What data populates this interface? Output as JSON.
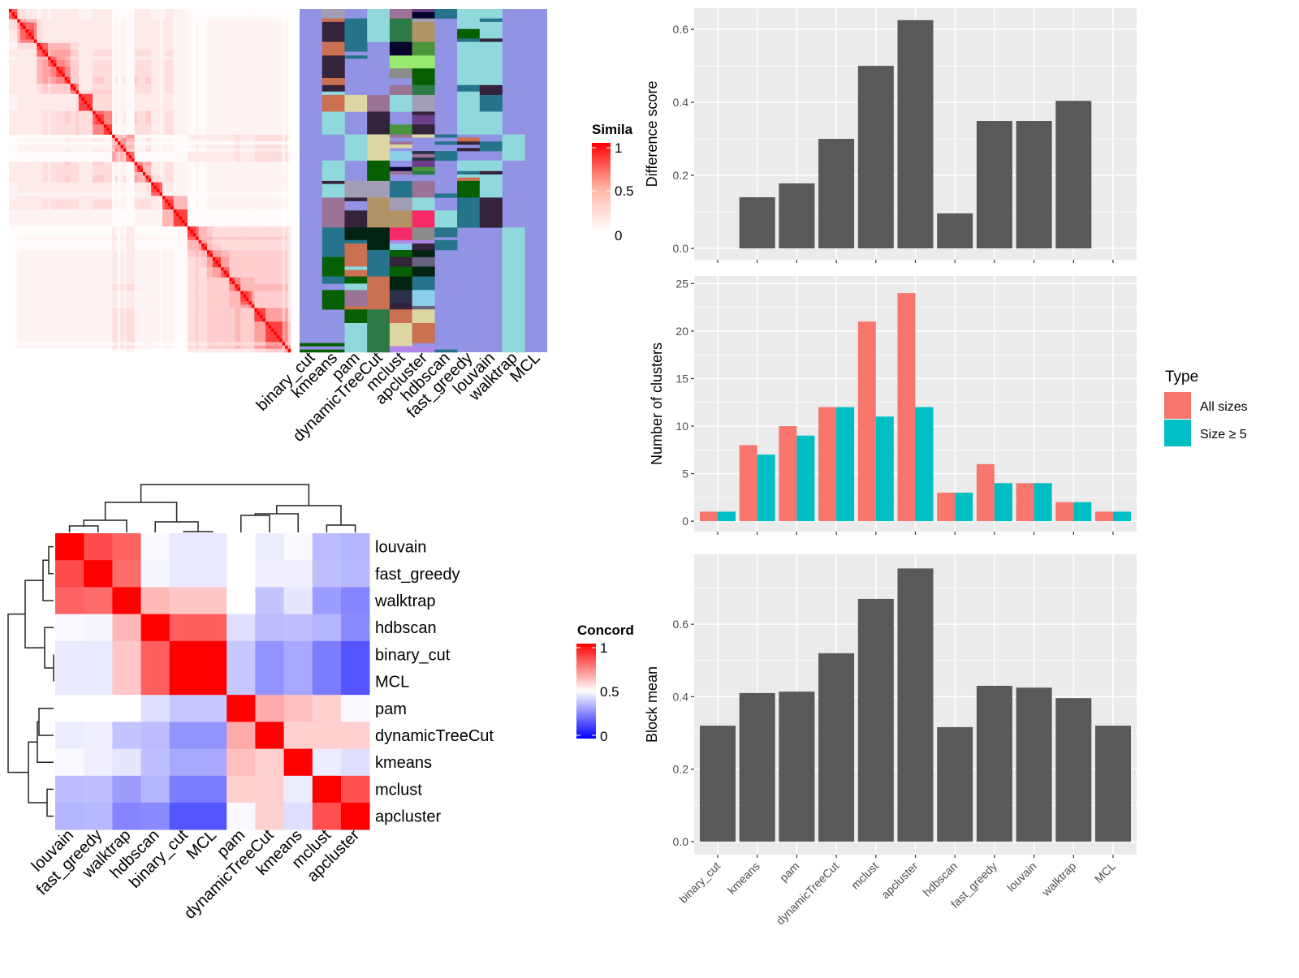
{
  "methods": [
    "binary_cut",
    "kmeans",
    "pam",
    "dynamicTreeCut",
    "mclust",
    "apcluster",
    "hdbscan",
    "fast_greedy",
    "louvain",
    "walktrap",
    "MCL"
  ],
  "similarity_legend": {
    "title": "Simila",
    "ticks": [
      "1",
      "0.5",
      "0"
    ],
    "low_color": "#ffffff",
    "high_color": "#ff0000"
  },
  "concordance_legend": {
    "title": "Concord",
    "ticks": [
      "1",
      "0.5",
      "0"
    ],
    "low_color": "#0000ff",
    "mid_color": "#ffffff",
    "high_color": "#ff0000"
  },
  "membership": {
    "rows": 101,
    "background": "#9393e6",
    "palette": {
      "cyan": "#8fd9dc",
      "teal": "#26748b",
      "dark": "#35223b",
      "orange": "#cc7052",
      "grey": "#a19eb5",
      "mauve": "#9b7397",
      "green": "#2d7a46",
      "tan": "#b19366",
      "navy": "#08052c",
      "lightgreen": "#98e970",
      "green2": "#4a953c",
      "dkgreen": "#065f02",
      "grey2": "#8b8b8b",
      "purple": "#6b3f8a",
      "khaki": "#dcd6a2",
      "pink": "#f72a68",
      "vdkgreen": "#022312",
      "skyblue": "#8ccfe8",
      "slate": "#2c3049",
      "lilac": "#b086e6",
      "slategrey": "#676280"
    },
    "columns": [
      [
        [
          98.3,
          99.2,
          "dkgreen"
        ],
        [
          100.2,
          101,
          "dkgreen"
        ]
      ],
      [
        [
          0,
          2.8,
          "grey"
        ],
        [
          2.8,
          3.8,
          "orange"
        ],
        [
          3.8,
          9.7,
          "dark"
        ],
        [
          9.7,
          13.7,
          "orange"
        ],
        [
          13.7,
          20.3,
          "dark"
        ],
        [
          20.3,
          22.4,
          "orange"
        ],
        [
          22.4,
          24.3,
          "dark"
        ],
        [
          24.3,
          25.3,
          "cyan"
        ],
        [
          25.3,
          30.2,
          "orange"
        ],
        [
          30.2,
          36.9,
          "cyan"
        ],
        [
          44.6,
          50.6,
          "cyan"
        ],
        [
          50.6,
          51.5,
          "dark"
        ],
        [
          51.5,
          55.5,
          "cyan"
        ],
        [
          55.5,
          64.3,
          "mauve"
        ],
        [
          64.3,
          73,
          "teal"
        ],
        [
          73,
          78.7,
          "dkgreen"
        ],
        [
          78.7,
          80.8,
          "teal"
        ],
        [
          82.7,
          88.4,
          "dkgreen"
        ],
        [
          98.3,
          99.2,
          "dkgreen"
        ],
        [
          100.2,
          101,
          "dkgreen"
        ]
      ],
      [
        [
          2.8,
          12.5,
          "teal"
        ],
        [
          13.7,
          14.6,
          "teal"
        ],
        [
          25.3,
          30.2,
          "khaki"
        ],
        [
          36.9,
          44.6,
          "cyan"
        ],
        [
          50.6,
          55.5,
          "grey"
        ],
        [
          55.5,
          56.5,
          "dark"
        ],
        [
          59.3,
          64.3,
          "dark"
        ],
        [
          64.3,
          68,
          "vdkgreen"
        ],
        [
          68,
          69,
          "teal"
        ],
        [
          69,
          75.8,
          "orange"
        ],
        [
          75.8,
          76.8,
          "cyan"
        ],
        [
          76.8,
          78.7,
          "orange"
        ],
        [
          78.7,
          80.8,
          "dkgreen"
        ],
        [
          80.8,
          82.7,
          "cyan"
        ],
        [
          82.7,
          87.4,
          "mauve"
        ],
        [
          87.4,
          88.4,
          "orange"
        ],
        [
          88.4,
          92.4,
          "dkgreen"
        ],
        [
          92.4,
          101,
          "cyan"
        ]
      ],
      [
        [
          0,
          9.7,
          "cyan"
        ],
        [
          25.3,
          30.2,
          "mauve"
        ],
        [
          30.2,
          36.9,
          "dark"
        ],
        [
          36.9,
          44.6,
          "khaki"
        ],
        [
          44.6,
          50.6,
          "dkgreen"
        ],
        [
          50.6,
          55.5,
          "grey"
        ],
        [
          55.5,
          64.3,
          "tan"
        ],
        [
          64.3,
          70.9,
          "vdkgreen"
        ],
        [
          70.9,
          78.7,
          "teal"
        ],
        [
          78.7,
          88.4,
          "orange"
        ],
        [
          88.4,
          101,
          "green"
        ]
      ],
      [
        [
          0,
          2.8,
          "mauve"
        ],
        [
          2.8,
          9.7,
          "green"
        ],
        [
          9.7,
          13.7,
          "navy"
        ],
        [
          13.7,
          17.5,
          "lightgreen"
        ],
        [
          17.5,
          20.3,
          "grey2"
        ],
        [
          22.4,
          25.3,
          "mauve"
        ],
        [
          25.3,
          30.2,
          "cyan"
        ],
        [
          34,
          36.9,
          "green2"
        ],
        [
          36.9,
          37.8,
          "mauve"
        ],
        [
          39,
          39.9,
          "mauve"
        ],
        [
          39.9,
          40.9,
          "khaki"
        ],
        [
          41.8,
          44.6,
          "skyblue"
        ],
        [
          46.5,
          47.7,
          "navy"
        ],
        [
          47.7,
          48.7,
          "mauve"
        ],
        [
          50.6,
          55.5,
          "teal"
        ],
        [
          55.5,
          59.3,
          "grey"
        ],
        [
          59.3,
          64.3,
          "tan"
        ],
        [
          64.3,
          68,
          "pink"
        ],
        [
          68,
          69,
          "lilac"
        ],
        [
          69,
          70.9,
          "skyblue"
        ],
        [
          70.9,
          73,
          "dkgreen"
        ],
        [
          73,
          75.8,
          "dark"
        ],
        [
          75.8,
          78.7,
          "dkgreen"
        ],
        [
          78.7,
          82.7,
          "vdkgreen"
        ],
        [
          82.7,
          86.5,
          "slate"
        ],
        [
          86.5,
          88.4,
          "dark"
        ],
        [
          88.4,
          92.4,
          "orange"
        ],
        [
          92.4,
          99.2,
          "khaki"
        ],
        [
          99.2,
          101,
          "lilac"
        ]
      ],
      [
        [
          0,
          0.9,
          "purple"
        ],
        [
          0.9,
          2.8,
          "navy"
        ],
        [
          2.8,
          3.8,
          "grey"
        ],
        [
          3.8,
          9.7,
          "tan"
        ],
        [
          9.7,
          13.7,
          "green2"
        ],
        [
          13.7,
          17.5,
          "lightgreen"
        ],
        [
          17.5,
          22.4,
          "dkgreen"
        ],
        [
          22.4,
          25.3,
          "green"
        ],
        [
          25.3,
          30.2,
          "grey"
        ],
        [
          30.2,
          31.2,
          "dark"
        ],
        [
          31.2,
          34,
          "purple"
        ],
        [
          34,
          36.9,
          "dark"
        ],
        [
          36.9,
          37.8,
          "khaki"
        ],
        [
          41.8,
          42.7,
          "slate"
        ],
        [
          42.7,
          43.7,
          "mauve"
        ],
        [
          43.7,
          44.6,
          "slate"
        ],
        [
          44.6,
          46.5,
          "purple"
        ],
        [
          46.5,
          47.7,
          "green2"
        ],
        [
          47.7,
          48.7,
          "green"
        ],
        [
          50.6,
          55.5,
          "mauve"
        ],
        [
          55.5,
          59.3,
          "cyan"
        ],
        [
          59.3,
          64.3,
          "pink"
        ],
        [
          64.3,
          68,
          "grey2"
        ],
        [
          68,
          69,
          "lilac"
        ],
        [
          69,
          70.9,
          "dark"
        ],
        [
          70.9,
          73,
          "vdkgreen"
        ],
        [
          73,
          75.8,
          "slategrey"
        ],
        [
          75.8,
          78.7,
          "vdkgreen"
        ],
        [
          78.7,
          82.7,
          "teal"
        ],
        [
          82.7,
          87.4,
          "skyblue"
        ],
        [
          87.4,
          88.4,
          "slategrey"
        ],
        [
          88.4,
          92.4,
          "khaki"
        ],
        [
          92.4,
          98.3,
          "orange"
        ],
        [
          99.2,
          101,
          "lilac"
        ]
      ],
      [
        [
          0,
          2.8,
          "teal"
        ],
        [
          36.9,
          37.8,
          "teal"
        ],
        [
          39,
          39.9,
          "teal"
        ],
        [
          41.8,
          44.6,
          "teal"
        ],
        [
          54.3,
          55.5,
          "teal"
        ],
        [
          59.3,
          64.3,
          "cyan"
        ],
        [
          64.3,
          67.1,
          "teal"
        ],
        [
          68,
          70.9,
          "teal"
        ],
        [
          100.2,
          101,
          "teal"
        ]
      ],
      [
        [
          0,
          5.9,
          "cyan"
        ],
        [
          5.9,
          8.7,
          "dkgreen"
        ],
        [
          8.7,
          9.7,
          "teal"
        ],
        [
          9.7,
          22.4,
          "cyan"
        ],
        [
          22.4,
          24.3,
          "teal"
        ],
        [
          24.3,
          36.9,
          "cyan"
        ],
        [
          37.8,
          39,
          "orange"
        ],
        [
          39,
          39.9,
          "dark"
        ],
        [
          40.9,
          41.8,
          "dark"
        ],
        [
          44.6,
          47.7,
          "cyan"
        ],
        [
          47.7,
          48.7,
          "teal"
        ],
        [
          48.7,
          49.6,
          "cyan"
        ],
        [
          49.6,
          50.6,
          "orange"
        ],
        [
          50.6,
          55.5,
          "dkgreen"
        ],
        [
          55.5,
          64.3,
          "teal"
        ]
      ],
      [
        [
          0,
          2.8,
          "cyan"
        ],
        [
          2.8,
          3.8,
          "teal"
        ],
        [
          3.8,
          8.7,
          "cyan"
        ],
        [
          8.7,
          9.7,
          "dark"
        ],
        [
          9.7,
          22.4,
          "cyan"
        ],
        [
          22.4,
          25.3,
          "dark"
        ],
        [
          25.3,
          30.2,
          "teal"
        ],
        [
          30.2,
          36.9,
          "cyan"
        ],
        [
          39,
          41.8,
          "teal"
        ],
        [
          44.6,
          47.7,
          "cyan"
        ],
        [
          47.7,
          48.7,
          "dark"
        ],
        [
          48.7,
          55.5,
          "cyan"
        ],
        [
          55.5,
          64.3,
          "dark"
        ]
      ],
      [
        [
          36.9,
          44.6,
          "cyan"
        ],
        [
          64.3,
          101,
          "cyan"
        ]
      ],
      []
    ]
  },
  "concordance": {
    "order": [
      "louvain",
      "fast_greedy",
      "walktrap",
      "hdbscan",
      "binary_cut",
      "MCL",
      "pam",
      "dynamicTreeCut",
      "kmeans",
      "mclust",
      "apcluster"
    ],
    "matrix": [
      [
        1,
        0.78,
        0.72,
        0.48,
        0.43,
        0.43,
        0.5,
        0.44,
        0.48,
        0.3,
        0.28
      ],
      [
        0.78,
        1,
        0.7,
        0.47,
        0.43,
        0.43,
        0.5,
        0.45,
        0.45,
        0.31,
        0.29
      ],
      [
        0.72,
        0.7,
        1,
        0.56,
        0.54,
        0.54,
        0.5,
        0.32,
        0.42,
        0.22,
        0.17
      ],
      [
        0.48,
        0.47,
        0.56,
        1,
        0.73,
        0.73,
        0.4,
        0.3,
        0.31,
        0.28,
        0.18
      ],
      [
        0.43,
        0.43,
        0.54,
        0.73,
        1,
        1,
        0.33,
        0.2,
        0.25,
        0.15,
        0.08
      ],
      [
        0.43,
        0.43,
        0.54,
        0.73,
        1,
        1,
        0.33,
        0.2,
        0.25,
        0.15,
        0.08
      ],
      [
        0.5,
        0.5,
        0.5,
        0.4,
        0.33,
        0.33,
        1,
        0.58,
        0.55,
        0.53,
        0.48
      ],
      [
        0.44,
        0.45,
        0.32,
        0.3,
        0.2,
        0.2,
        0.58,
        1,
        0.53,
        0.53,
        0.53
      ],
      [
        0.48,
        0.45,
        0.42,
        0.31,
        0.25,
        0.25,
        0.55,
        0.53,
        1,
        0.44,
        0.4
      ],
      [
        0.3,
        0.31,
        0.22,
        0.28,
        0.15,
        0.15,
        0.53,
        0.53,
        0.44,
        1,
        0.77
      ],
      [
        0.28,
        0.29,
        0.17,
        0.18,
        0.08,
        0.08,
        0.48,
        0.53,
        0.4,
        0.77,
        1
      ]
    ]
  },
  "chart_data": [
    {
      "type": "bar",
      "ylabel": "Difference score",
      "categories": [
        "binary_cut",
        "kmeans",
        "pam",
        "dynamicTreeCut",
        "mclust",
        "apcluster",
        "hdbscan",
        "fast_greedy",
        "louvain",
        "walktrap",
        "MCL"
      ],
      "values": [
        0,
        0.14,
        0.178,
        0.3,
        0.5,
        0.625,
        0.096,
        0.349,
        0.349,
        0.404,
        0
      ],
      "yticks": [
        "0.0",
        "0.2",
        "0.4",
        "0.6"
      ],
      "ylim": [
        -0.031,
        0.658
      ],
      "color": "#595959",
      "grid": true
    },
    {
      "type": "bar",
      "ylabel": "Number of clusters",
      "categories": [
        "binary_cut",
        "kmeans",
        "pam",
        "dynamicTreeCut",
        "mclust",
        "apcluster",
        "hdbscan",
        "fast_greedy",
        "louvain",
        "walktrap",
        "MCL"
      ],
      "series": [
        {
          "name": "All sizes",
          "values": [
            1,
            8,
            10,
            12,
            21,
            24,
            3,
            6,
            4,
            2,
            1
          ],
          "color": "#f8766d"
        },
        {
          "name": "Size ≥ 5",
          "values": [
            1,
            7,
            9,
            12,
            11,
            12,
            3,
            4,
            4,
            2,
            1
          ],
          "color": "#00bfc4"
        }
      ],
      "yticks": [
        "0",
        "5",
        "10",
        "15",
        "20",
        "25"
      ],
      "ylim": [
        -1.1,
        25.8
      ],
      "grid": true,
      "legend": {
        "title": "Type",
        "position": "right"
      }
    },
    {
      "type": "bar",
      "ylabel": "Block mean",
      "categories": [
        "binary_cut",
        "kmeans",
        "pam",
        "dynamicTreeCut",
        "mclust",
        "apcluster",
        "hdbscan",
        "fast_greedy",
        "louvain",
        "walktrap",
        "MCL"
      ],
      "values": [
        0.32,
        0.41,
        0.414,
        0.52,
        0.67,
        0.754,
        0.316,
        0.43,
        0.425,
        0.396,
        0.32
      ],
      "yticks": [
        "0.0",
        "0.2",
        "0.4",
        "0.6"
      ],
      "ylim": [
        -0.036,
        0.793
      ],
      "color": "#595959",
      "grid": true
    }
  ]
}
